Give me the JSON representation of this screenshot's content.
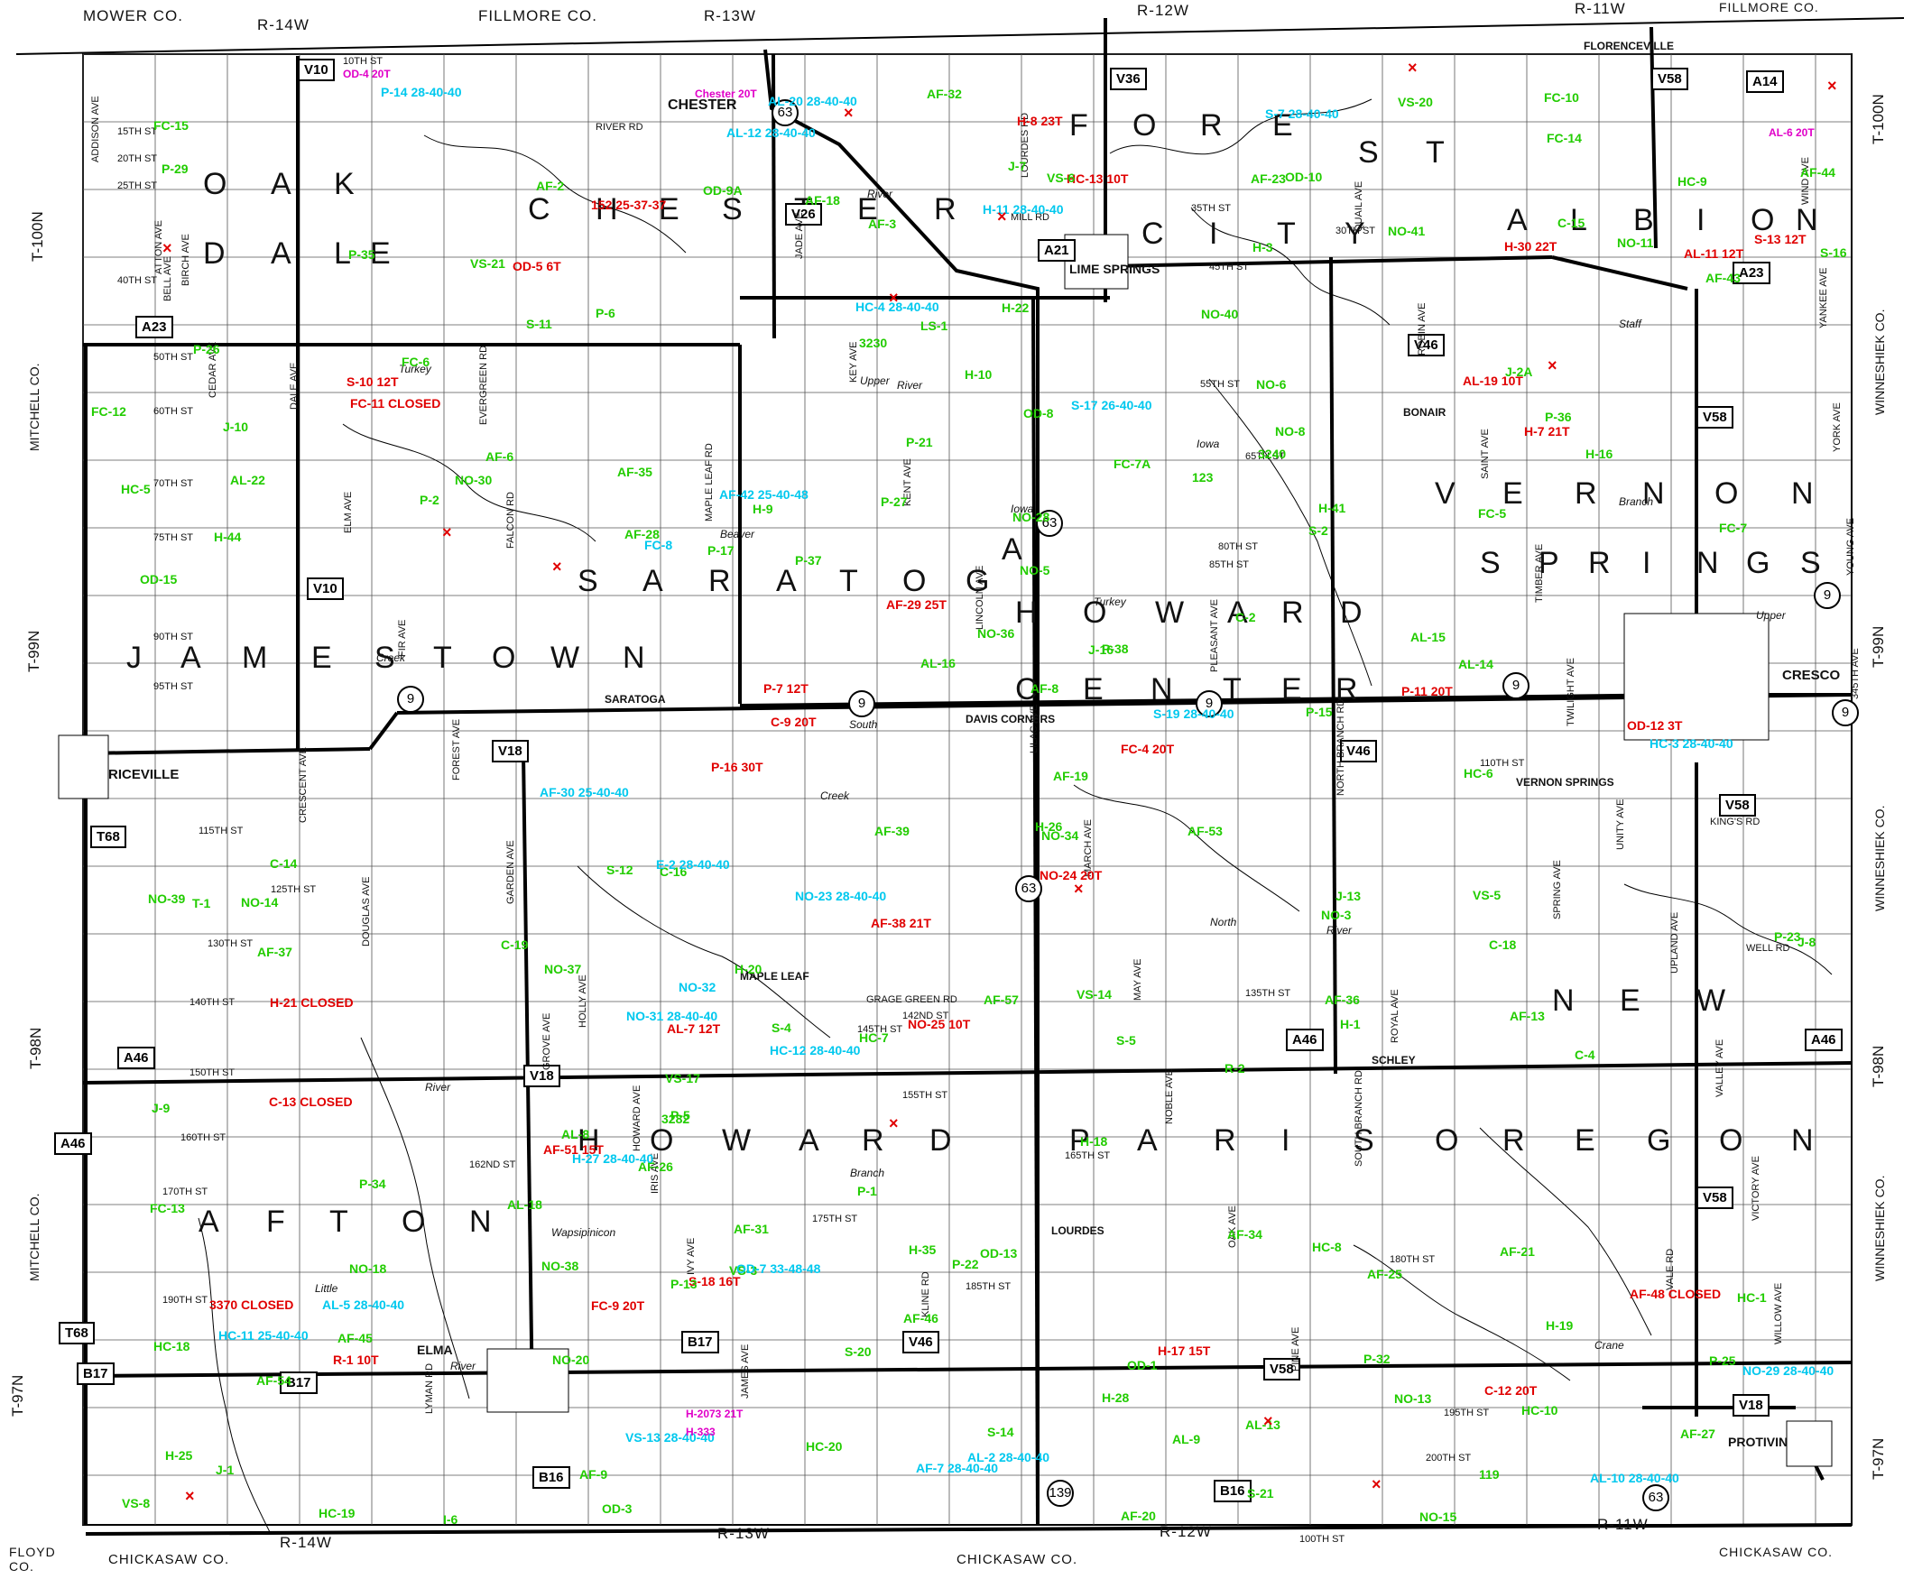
{
  "colors": {
    "closed_red": "#e00000",
    "bridge_green": "#22cc00",
    "posted_cyan": "#00c8ee",
    "info_magenta": "#e000c8",
    "road_black": "#000000"
  },
  "edge_labels": {
    "top": [
      {
        "name": "mower-co",
        "text": "MOWER  CO."
      },
      {
        "name": "r14w-top",
        "text": "R-14W"
      },
      {
        "name": "fillmore-co-1",
        "text": "FILLMORE  CO."
      },
      {
        "name": "r13w-top",
        "text": "R-13W"
      },
      {
        "name": "r12w-top",
        "text": "R-12W"
      },
      {
        "name": "r11w-top",
        "text": "R-11W"
      },
      {
        "name": "fillmore-co-2",
        "text": "FILLMORE  CO."
      }
    ],
    "bottom": [
      {
        "name": "floyd-co",
        "text": "FLOYD\nCO."
      },
      {
        "name": "chickasaw-co-1",
        "text": "CHICKASAW  CO."
      },
      {
        "name": "r14w-bottom",
        "text": "R-14W"
      },
      {
        "name": "r13w-bottom",
        "text": "R-13W"
      },
      {
        "name": "chickasaw-co-2",
        "text": "CHICKASAW  CO."
      },
      {
        "name": "r12w-bottom",
        "text": "R-12W"
      },
      {
        "name": "r11w-bottom",
        "text": "R-11W"
      },
      {
        "name": "chickasaw-co-3",
        "text": "CHICKASAW  CO."
      }
    ],
    "left": [
      {
        "name": "t100n-left",
        "text": "T-100N"
      },
      {
        "name": "mitchell-co-1",
        "text": "MITCHELL  CO."
      },
      {
        "name": "t99n-left",
        "text": "T-99N"
      },
      {
        "name": "t98n-left",
        "text": "T-98N"
      },
      {
        "name": "mitchell-co-2",
        "text": "MITCHELL  CO."
      },
      {
        "name": "t97n-left",
        "text": "T-97N"
      }
    ],
    "right": [
      {
        "name": "t100n-right",
        "text": "T-100N"
      },
      {
        "name": "winneshiek-co-1",
        "text": "WINNESHIEK  CO."
      },
      {
        "name": "t99n-right",
        "text": "T-99N"
      },
      {
        "name": "winneshiek-co-2",
        "text": "WINNESHIEK  CO."
      },
      {
        "name": "t98n-right",
        "text": "T-98N"
      },
      {
        "name": "winneshiek-co-3",
        "text": "WINNESHIEK  CO."
      },
      {
        "name": "t97n-right",
        "text": "T-97N"
      }
    ]
  },
  "towns": [
    "CHESTER",
    "LIME SPRINGS",
    "RICEVILLE",
    "CRESCO",
    "SARATOGA",
    "DAVIS CORNERS",
    "MAPLE LEAF",
    "ELMA",
    "LOURDES",
    "SCHLEY",
    "PROTIVIN",
    "FLORENCEVILLE",
    "BONAIR",
    "VERNON SPRINGS"
  ],
  "township_letters": {
    "oakdale": [
      "O",
      "A",
      "K",
      "D",
      "A",
      "L",
      "E"
    ],
    "chester": [
      "C",
      "H",
      "E",
      "S",
      "T",
      "E",
      "R"
    ],
    "forest_city": [
      "F",
      "O",
      "R",
      "E",
      "S",
      "T",
      "C",
      "I",
      "T",
      "Y"
    ],
    "albion": [
      "A",
      "L",
      "B",
      "I",
      "O",
      "N"
    ],
    "jamestown": [
      "J",
      "A",
      "M",
      "E",
      "S",
      "T",
      "O",
      "W",
      "N"
    ],
    "saratoga": [
      "S",
      "A",
      "R",
      "A",
      "T",
      "O",
      "G",
      "A"
    ],
    "howard_center": [
      "H",
      "O",
      "W",
      "A",
      "R",
      "D",
      "C",
      "E",
      "N",
      "T",
      "E",
      "R"
    ],
    "vernon_springs": [
      "V",
      "E",
      "R",
      "N",
      "O",
      "N",
      "S",
      "P",
      "R",
      "I",
      "N",
      "G",
      "S"
    ],
    "new_oregon": [
      "N",
      "E",
      "W"
    ],
    "afton": [
      "A",
      "F",
      "T",
      "O",
      "N"
    ],
    "howard": [
      "H",
      "O",
      "W",
      "A",
      "R",
      "D"
    ],
    "paris": [
      "P",
      "A",
      "R",
      "I",
      "S"
    ],
    "oregon": [
      "O",
      "R",
      "E",
      "G",
      "O",
      "N"
    ]
  },
  "route_shields": [
    "V10",
    "A23",
    "V36",
    "V26",
    "A21",
    "A14",
    "V58",
    "A23",
    "V46",
    "V58",
    "V10",
    "V18",
    "V46",
    "V58",
    "T68",
    "A46",
    "A46",
    "A46",
    "V18",
    "V58",
    "A46",
    "T68",
    "B17",
    "B17",
    "B17",
    "V46",
    "V58",
    "V18",
    "B16",
    "B16",
    "63",
    "139",
    "9",
    "9",
    "9",
    "9",
    "9",
    "63",
    "63",
    "63",
    "9"
  ],
  "streets": [
    "10TH ST",
    "15TH ST",
    "20TH ST",
    "25TH ST",
    "30TH ST",
    "35TH ST",
    "40TH ST",
    "45TH ST",
    "50TH ST",
    "55TH ST",
    "60TH ST",
    "65TH ST",
    "70TH ST",
    "75TH ST",
    "80TH ST",
    "85TH ST",
    "90TH ST",
    "95TH ST",
    "110TH ST",
    "115TH ST",
    "125TH ST",
    "130TH ST",
    "135TH ST",
    "140TH ST",
    "142ND ST",
    "145TH ST",
    "150TH ST",
    "155TH ST",
    "160TH ST",
    "162ND ST",
    "165TH ST",
    "170TH ST",
    "175TH ST",
    "180TH ST",
    "185TH ST",
    "190TH ST",
    "195TH ST",
    "200TH ST",
    "100TH ST",
    "RIVER RD",
    "MILL RD",
    "KING'S RD",
    "WELL RD",
    "GRAGE GREEN RD"
  ],
  "avenues": [
    "ADDISON AVE",
    "BIRCH AVE",
    "DALE AVE",
    "ELM AVE",
    "FIR AVE",
    "FOREST AVE",
    "GARDEN AVE",
    "HOLLY AVE",
    "HOWARD AVE",
    "IVY AVE",
    "JAMES AVE",
    "JADE AVE",
    "KEY AVE",
    "KENT AVE",
    "LINCOLN AVE",
    "LILAC AVE",
    "MARCH AVE",
    "MAY AVE",
    "NOBLE AVE",
    "OAK AVE",
    "PINE AVE",
    "QUAIL AVE",
    "ROBIN AVE",
    "SAINT AVE",
    "TIMBER AVE",
    "TWILIGHT AVE",
    "UNITY AVE",
    "UPLAND AVE",
    "VALLEY AVE",
    "VICTORY AVE",
    "WILLOW AVE",
    "WIND AVE",
    "YANKEE AVE",
    "YORK AVE",
    "YOUNG AVE",
    "345TH AVE",
    "CRESCENT AVE",
    "DOUGLAS AVE",
    "GROVE AVE",
    "IRIS AVE",
    "KLINE RD",
    "LOURDES RD",
    "BELL AVE",
    "EVERGREEN RD",
    "FALCON RD",
    "PLEASANT AVE",
    "NORTH BRANCH RD",
    "SPRING AVE",
    "ROYAL AVE",
    "SOUTH BRANCH RD",
    "VALE RD",
    "LYMAN RD",
    "ATTON AVE",
    "CEDAR AVE",
    "MAPLE LEAF RD"
  ],
  "water_labels": [
    "Crane",
    "Creek",
    "Staff",
    "Creek",
    "Iowa",
    "River",
    "Upper",
    "Iowa",
    "River",
    "Beaver",
    "Little",
    "Wapsipinicon",
    "River",
    "Turkey",
    "River",
    "Turkey",
    "River",
    "Upper",
    "North",
    "Branch",
    "South",
    "Branch"
  ],
  "closures_red": [
    "OD-5 6T",
    "OD-12 3T",
    "C-9 20T",
    "C-12 20T",
    "C-13 CLOSED",
    "FC-11 CLOSED",
    "FC-4 20T",
    "FC-9 20T",
    "AL-7 12T",
    "AL-11 12T",
    "AL-19 10T",
    "152 25-37-37",
    "S-10 12T",
    "S-13 12T",
    "S-18 16T",
    "HC-13 10T",
    "R-1 10T",
    "H-7 21T",
    "H-8 23T",
    "H-17 15T",
    "H-21 CLOSED",
    "P-7 12T",
    "P-11 20T",
    "AF-29 25T",
    "AF-38 21T",
    "AF-48 CLOSED",
    "AF-51 15T",
    "3370 CLOSED",
    "P-16 30T",
    "H-30 22T",
    "NO-24 20T",
    "NO-25 10T"
  ],
  "green_bridges": [
    "OD-3",
    "OD-1",
    "OD-8",
    "OD-10",
    "OD-9A",
    "OD-15",
    "OD-13",
    "C-2",
    "C-4",
    "C-14",
    "C-15",
    "C-16",
    "C-18",
    "C-19",
    "FC-5",
    "FC-7",
    "FC-6",
    "FC-7A",
    "FC-10",
    "FC-12",
    "FC-13",
    "FC-14",
    "FC-15",
    "LS-1",
    "AL-8",
    "AL-9",
    "AL-18",
    "AL-16",
    "AL-22",
    "AL-13",
    "AL-14",
    "AL-15",
    "J-1",
    "J-7",
    "J-8",
    "J-2A",
    "J-9",
    "J-10",
    "I-6",
    "R-2",
    "S-4",
    "S-5",
    "S-2",
    "S-11",
    "S-12",
    "S-14",
    "S-16",
    "S-21",
    "S-20",
    "HC-1",
    "HC-5",
    "HC-6",
    "HC-7",
    "HC-8",
    "HC-9",
    "HC-10",
    "HC-18",
    "HC-19",
    "HC-20",
    "VS-3",
    "VS-5",
    "VS-6",
    "VS-8",
    "VS-21",
    "VS-14",
    "VS-17",
    "VS-20",
    "119",
    "123",
    "J-13",
    "J-16",
    "AF-2",
    "AF-3",
    "AF-6",
    "AF-8",
    "AF-9",
    "AF-54",
    "AF-13",
    "AF-19",
    "AF-57",
    "AF-18",
    "AF-20",
    "AF-21",
    "AF-23",
    "AF-25",
    "AF-26",
    "AF-27",
    "AF-28",
    "AF-31",
    "AF-32",
    "AF-34",
    "AF-35",
    "AF-36",
    "AF-37",
    "AF-39",
    "AF-43",
    "AF-44",
    "AF-45",
    "AF-46",
    "AF-53",
    "H-1",
    "H-3",
    "H-9",
    "H-10",
    "H-16",
    "H-18",
    "H-19",
    "H-20",
    "H-22",
    "H-25",
    "H-26",
    "H-28",
    "H-35",
    "H-41",
    "H-44",
    "P-1",
    "P-2",
    "P-5",
    "P-6",
    "P-13",
    "P-15",
    "P-17",
    "P-21",
    "P-22",
    "P-23",
    "P-25",
    "P-26",
    "P-27",
    "P-29",
    "P-32",
    "P-34",
    "P-35",
    "P-36",
    "P-37",
    "P-38",
    "NO-3",
    "NO-5",
    "NO-6",
    "NO-8",
    "NO-11",
    "NO-13",
    "NO-14",
    "NO-15",
    "NO-18",
    "NO-20",
    "NO-28",
    "NO-30",
    "NO-34",
    "NO-36",
    "NO-37",
    "NO-38",
    "NO-39",
    "NO-40",
    "NO-41",
    "3230",
    "3240",
    "3282",
    "T-1"
  ],
  "cyan_postings": [
    "OD-7 33-48-48",
    "FC-8",
    "S-7 28-40-40",
    "S-17 26-40-40",
    "S-19 28-40-40",
    "HC-3 28-40-40",
    "HC-4 28-40-40",
    "HC-11 25-40-40",
    "HC-12 28-40-40",
    "VS-13 28-40-40",
    "AL-10 28-40-40",
    "AL-20 28-40-40",
    "AF-7 28-40-40",
    "H-11 28-40-40",
    "H-27 28-40-40",
    "E-2 28-40-40",
    "AF-30 25-40-40",
    "AF-42 25-40-48",
    "P-14 28-40-40",
    "NO-23 28-40-40",
    "NO-29 28-40-40",
    "NO-31 28-40-40",
    "NO-32",
    "AL-2 28-40-40",
    "AL-5 28-40-40",
    "AL-12 28-40-40"
  ],
  "magenta_notes": [
    "OD-4 20T",
    "Chester 20T",
    "AL-6 20T",
    "H-2073 21T",
    "H-333"
  ]
}
